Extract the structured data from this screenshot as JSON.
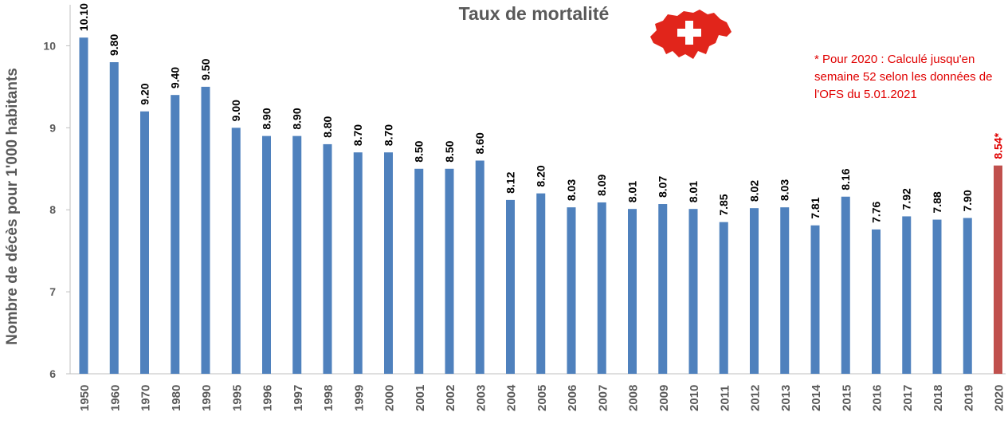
{
  "title": "Taux de mortalité",
  "note": "* Pour 2020 : Calculé jusqu'en semaine 52 selon les données de l'OFS du 5.01.2021",
  "colors": {
    "bar": "#4f81bd",
    "highlight": "#c0504d",
    "highlight_label": "#e00000",
    "text": "#595959"
  },
  "chart_data": {
    "type": "bar",
    "title": "Taux de mortalité",
    "xlabel": "",
    "ylabel": "Nombre de décès pour 1'000 habitants",
    "ylim": [
      6,
      10.5
    ],
    "yticks": [
      "6",
      "7",
      "8",
      "9",
      "10"
    ],
    "categories": [
      "1950",
      "1960",
      "1970",
      "1980",
      "1990",
      "1995",
      "1996",
      "1997",
      "1998",
      "1999",
      "2000",
      "2001",
      "2002",
      "2003",
      "2004",
      "2005",
      "2006",
      "2007",
      "2008",
      "2009",
      "2010",
      "2011",
      "2012",
      "2013",
      "2014",
      "2015",
      "2016",
      "2017",
      "2018",
      "2019",
      "2020"
    ],
    "values": [
      10.1,
      9.8,
      9.2,
      9.4,
      9.5,
      9.0,
      8.9,
      8.9,
      8.8,
      8.7,
      8.7,
      8.5,
      8.5,
      8.6,
      8.12,
      8.2,
      8.03,
      8.09,
      8.01,
      8.07,
      8.01,
      7.85,
      8.02,
      8.03,
      7.81,
      8.16,
      7.76,
      7.92,
      7.88,
      7.9,
      8.54
    ],
    "data_labels": [
      "10.10",
      "9.80",
      "9.20",
      "9.40",
      "9.50",
      "9.00",
      "8.90",
      "8.90",
      "8.80",
      "8.70",
      "8.70",
      "8.50",
      "8.50",
      "8.60",
      "8.12",
      "8.20",
      "8.03",
      "8.09",
      "8.01",
      "8.07",
      "8.01",
      "7.85",
      "8.02",
      "8.03",
      "7.81",
      "8.16",
      "7.76",
      "7.92",
      "7.88",
      "7.90",
      "8.54*"
    ],
    "highlight_index": 30,
    "grid": false,
    "legend": "none"
  }
}
